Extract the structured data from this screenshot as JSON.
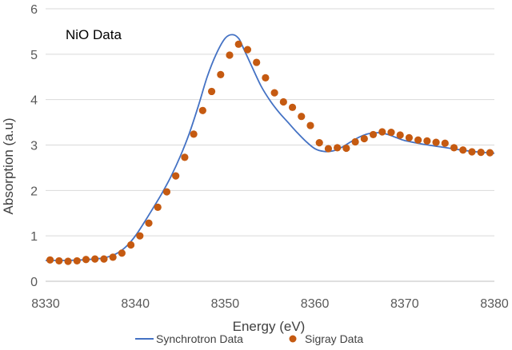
{
  "chart_data": {
    "type": "scatter",
    "title": "",
    "annotation": "NiO Data",
    "xlabel": "Energy (eV)",
    "ylabel": "Absorption (a.u)",
    "xlim": [
      8330,
      8380
    ],
    "ylim": [
      0,
      6
    ],
    "x_ticks": [
      "8330",
      "8340",
      "8350",
      "8360",
      "8370",
      "8380"
    ],
    "y_ticks": [
      "0",
      "1",
      "2",
      "3",
      "4",
      "5",
      "6"
    ],
    "grid": "horizontal",
    "legend_position": "bottom",
    "colors": {
      "line": "#4472C4",
      "marker": "#C55A11",
      "grid": "#D9D9D9"
    },
    "series": [
      {
        "name": "Synchrotron Data",
        "style": "line",
        "x": [
          8330,
          8332,
          8334,
          8336,
          8337,
          8338,
          8339,
          8340,
          8341,
          8342,
          8343,
          8344,
          8345,
          8346,
          8347,
          8348,
          8349,
          8350,
          8350.8,
          8351.5,
          8352,
          8353,
          8354,
          8355,
          8356,
          8357,
          8358,
          8359,
          8360,
          8361,
          8362,
          8363,
          8364,
          8365,
          8366,
          8367,
          8368,
          8369,
          8370,
          8372,
          8374,
          8376,
          8378,
          8380
        ],
        "y": [
          0.46,
          0.46,
          0.47,
          0.5,
          0.54,
          0.62,
          0.77,
          1.0,
          1.3,
          1.62,
          1.95,
          2.32,
          2.75,
          3.25,
          3.85,
          4.5,
          5.0,
          5.35,
          5.43,
          5.35,
          5.15,
          4.72,
          4.3,
          3.98,
          3.72,
          3.5,
          3.28,
          3.08,
          2.92,
          2.86,
          2.87,
          2.95,
          3.07,
          3.18,
          3.25,
          3.27,
          3.24,
          3.17,
          3.1,
          3.02,
          2.96,
          2.9,
          2.85,
          2.82
        ]
      },
      {
        "name": "Sigray Data",
        "style": "markers",
        "x": [
          8330.5,
          8331.5,
          8332.5,
          8333.5,
          8334.5,
          8335.5,
          8336.5,
          8337.5,
          8338.5,
          8339.5,
          8340.5,
          8341.5,
          8342.5,
          8343.5,
          8344.5,
          8345.5,
          8346.5,
          8347.5,
          8348.5,
          8349.5,
          8350.5,
          8351.5,
          8352.5,
          8353.5,
          8354.5,
          8355.5,
          8356.5,
          8357.5,
          8358.5,
          8359.5,
          8360.5,
          8361.5,
          8362.5,
          8363.5,
          8364.5,
          8365.5,
          8366.5,
          8367.5,
          8368.5,
          8369.5,
          8370.5,
          8371.5,
          8372.5,
          8373.5,
          8374.5,
          8375.5,
          8376.5,
          8377.5,
          8378.5,
          8379.5
        ],
        "y": [
          0.47,
          0.45,
          0.44,
          0.45,
          0.48,
          0.49,
          0.49,
          0.53,
          0.62,
          0.8,
          1.0,
          1.28,
          1.63,
          1.97,
          2.32,
          2.73,
          3.24,
          3.76,
          4.18,
          4.55,
          4.98,
          5.22,
          5.1,
          4.82,
          4.48,
          4.15,
          3.95,
          3.83,
          3.63,
          3.43,
          3.05,
          2.92,
          2.94,
          2.93,
          3.07,
          3.14,
          3.23,
          3.29,
          3.28,
          3.22,
          3.16,
          3.11,
          3.09,
          3.06,
          3.04,
          2.94,
          2.89,
          2.85,
          2.84,
          2.83
        ]
      }
    ]
  }
}
